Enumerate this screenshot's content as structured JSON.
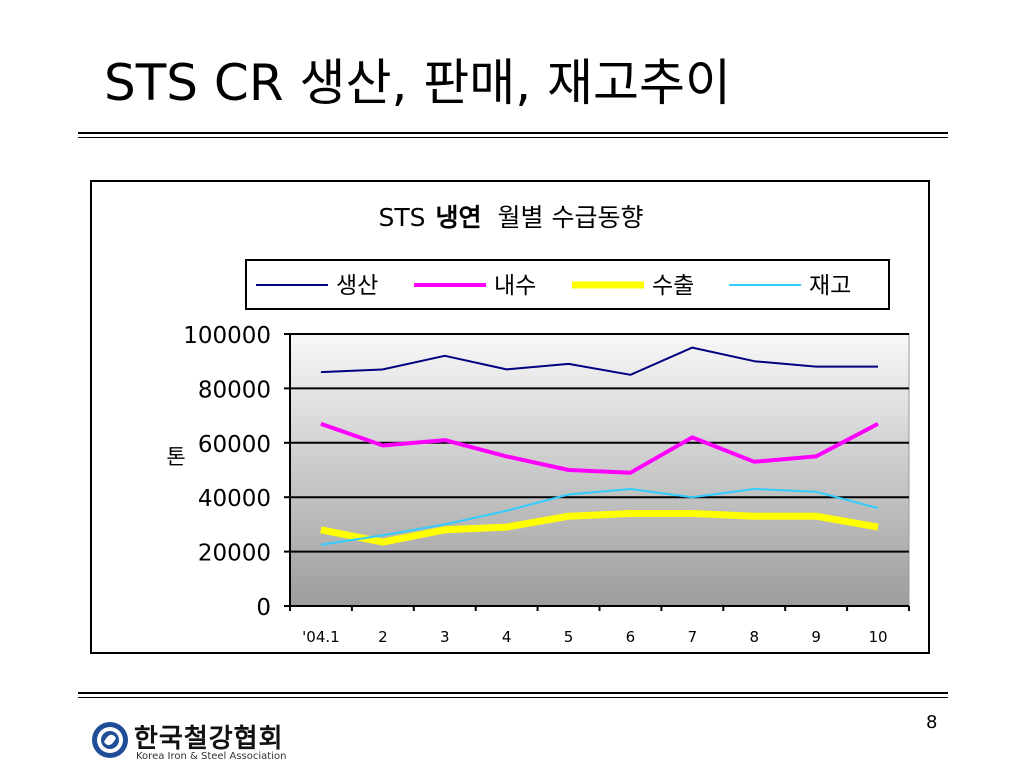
{
  "slide": {
    "title": "STS CR 생산, 판매, 재고추이",
    "page_number": "8"
  },
  "logo": {
    "name_ko": "한국철강협회",
    "name_en": "Korea Iron & Steel Association"
  },
  "colors": {
    "production": "#000080",
    "domestic": "#ff00ff",
    "export": "#ffff00",
    "inventory": "#33ccff"
  },
  "chart_data": {
    "type": "line",
    "title_prefix": "STS",
    "title_bold": "냉연",
    "title_suffix": "월별 수급동향",
    "ylabel": "톤",
    "xlabel": "",
    "categories": [
      "'04.1",
      "2",
      "3",
      "4",
      "5",
      "6",
      "7",
      "8",
      "9",
      "10"
    ],
    "ylim": [
      0,
      100000
    ],
    "yticks": [
      "0",
      "20000",
      "40000",
      "60000",
      "80000",
      "100000"
    ],
    "grid": true,
    "legend_position": "top",
    "series": [
      {
        "name": "생산",
        "color": "#000080",
        "values": [
          86000,
          87000,
          92000,
          87000,
          89000,
          85000,
          95000,
          90000,
          88000,
          88000
        ]
      },
      {
        "name": "내수",
        "color": "#ff00ff",
        "values": [
          67000,
          59000,
          61000,
          55000,
          50000,
          49000,
          62000,
          53000,
          55000,
          67000
        ]
      },
      {
        "name": "수출",
        "color": "#ffff00",
        "values": [
          28000,
          23500,
          28000,
          29000,
          33000,
          34000,
          34000,
          33000,
          33000,
          29000
        ]
      },
      {
        "name": "재고",
        "color": "#33ccff",
        "values": [
          22500,
          26000,
          30000,
          35000,
          41000,
          43000,
          40000,
          43000,
          42000,
          36000
        ]
      }
    ]
  }
}
